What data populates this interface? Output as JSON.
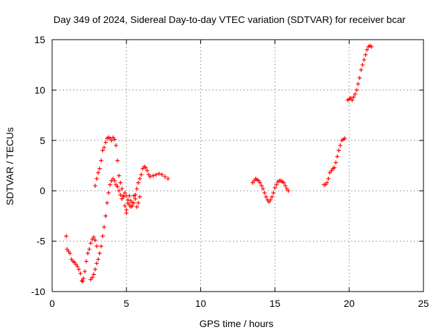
{
  "chart_data": {
    "type": "scatter",
    "title": "Day 349 of 2024, Sidereal Day-to-day VTEC variation (SDTVAR) for receiver bcar",
    "xlabel": "GPS time / hours",
    "ylabel": "SDTVAR / TECUs",
    "xlim": [
      0,
      25
    ],
    "ylim": [
      -10,
      15
    ],
    "xticks": [
      0,
      5,
      10,
      15,
      20,
      25
    ],
    "xtick_labels": [
      "0",
      "5",
      "10",
      "15",
      "20",
      "25"
    ],
    "yticks": [
      -10,
      -5,
      0,
      5,
      10,
      15
    ],
    "ytick_labels": [
      "-10",
      "-5",
      "0",
      "5",
      "10",
      "15"
    ],
    "grid": true,
    "marker": "plus",
    "color": "#ff0000",
    "series": [
      {
        "x": [
          0.95,
          1.0,
          1.1,
          1.2,
          1.3,
          1.4,
          1.5,
          1.6,
          1.7,
          1.8,
          1.9,
          2.0,
          2.05,
          2.1,
          2.2,
          2.3,
          2.4,
          2.5,
          2.6,
          2.7,
          2.8,
          2.9,
          3.0
        ],
        "y": [
          -4.5,
          -5.8,
          -6.0,
          -6.2,
          -6.8,
          -7.0,
          -7.1,
          -7.3,
          -7.5,
          -7.8,
          -8.2,
          -8.9,
          -9.0,
          -8.7,
          -8.0,
          -7.0,
          -6.2,
          -5.8,
          -5.2,
          -4.8,
          -4.6,
          -4.9,
          -5.5
        ]
      },
      {
        "x": [
          2.6,
          2.7,
          2.8,
          2.9,
          3.0,
          3.1,
          3.2,
          3.3,
          3.4,
          3.5,
          3.6,
          3.7,
          3.8,
          3.9,
          4.0,
          4.1,
          4.2,
          4.3,
          4.4,
          4.5,
          4.6,
          4.7,
          4.8,
          4.9,
          5.0,
          5.1,
          5.2,
          5.3,
          5.4,
          5.5,
          5.6,
          5.7,
          5.8,
          5.9
        ],
        "y": [
          -8.8,
          -8.6,
          -8.3,
          -7.8,
          -7.2,
          -6.8,
          -6.2,
          -5.5,
          -4.5,
          -3.6,
          -2.5,
          -1.2,
          -0.2,
          0.6,
          1.0,
          1.2,
          1.0,
          0.6,
          0.4,
          0.0,
          -0.4,
          -0.8,
          -0.6,
          -0.2,
          -0.5,
          -0.9,
          -1.4,
          -1.6,
          -1.2,
          -0.5,
          -0.8,
          -1.6,
          -1.2,
          -0.6
        ]
      },
      {
        "x": [
          2.9,
          3.0,
          3.1,
          3.2,
          3.3,
          3.4,
          3.5,
          3.6,
          3.7,
          3.8,
          3.9,
          4.0,
          4.1,
          4.2,
          4.3,
          4.4,
          4.5,
          4.6,
          4.7,
          4.8,
          4.9,
          5.0
        ],
        "y": [
          0.5,
          1.2,
          1.8,
          2.2,
          3.0,
          4.0,
          4.3,
          4.8,
          5.2,
          5.3,
          5.2,
          5.0,
          5.3,
          5.1,
          4.5,
          3.0,
          1.5,
          0.8,
          0.2,
          -0.5,
          -1.5,
          -2.2
        ]
      },
      {
        "x": [
          5.0,
          5.1,
          5.2,
          5.3,
          5.4,
          5.5,
          5.6,
          5.7,
          5.8,
          5.9,
          6.0,
          6.1,
          6.2,
          6.3,
          6.4,
          6.5,
          6.6,
          6.8,
          7.0,
          7.2,
          7.4,
          7.6,
          7.8
        ],
        "y": [
          -1.9,
          -1.2,
          -0.5,
          -1.0,
          -1.5,
          -1.2,
          -0.4,
          0.2,
          0.8,
          1.2,
          1.6,
          2.2,
          2.4,
          2.3,
          2.0,
          1.6,
          1.4,
          1.5,
          1.6,
          1.7,
          1.6,
          1.4,
          1.2
        ]
      },
      {
        "x": [
          13.5,
          13.6,
          13.7,
          13.8,
          13.9,
          14.0,
          14.1,
          14.2,
          14.3,
          14.4,
          14.5,
          14.6,
          14.7,
          14.8,
          14.9,
          15.0,
          15.1,
          15.2,
          15.3,
          15.4,
          15.5,
          15.6,
          15.7,
          15.8,
          15.9
        ],
        "y": [
          0.8,
          1.0,
          1.2,
          1.1,
          1.0,
          0.8,
          0.5,
          0.2,
          -0.2,
          -0.6,
          -0.9,
          -1.1,
          -0.9,
          -0.6,
          -0.2,
          0.3,
          0.6,
          0.9,
          1.0,
          1.0,
          0.9,
          0.8,
          0.5,
          0.2,
          0.0
        ]
      },
      {
        "x": [
          18.3,
          18.4,
          18.5,
          18.6,
          18.7,
          18.8,
          18.9,
          19.0,
          19.1,
          19.2,
          19.3,
          19.4,
          19.5,
          19.6,
          19.7
        ],
        "y": [
          0.6,
          0.6,
          0.8,
          1.2,
          1.8,
          2.0,
          2.2,
          2.3,
          2.8,
          3.4,
          4.0,
          4.5,
          5.0,
          5.1,
          5.2
        ]
      },
      {
        "x": [
          19.9,
          20.0,
          20.1,
          20.2,
          20.3,
          20.4,
          20.5,
          20.6,
          20.7,
          20.8,
          20.9,
          21.0,
          21.1,
          21.2,
          21.3,
          21.4,
          21.5
        ],
        "y": [
          9.0,
          9.1,
          9.2,
          9.0,
          9.3,
          9.6,
          10.0,
          10.6,
          11.2,
          12.0,
          12.5,
          13.0,
          13.5,
          14.0,
          14.3,
          14.4,
          14.3
        ]
      }
    ]
  }
}
